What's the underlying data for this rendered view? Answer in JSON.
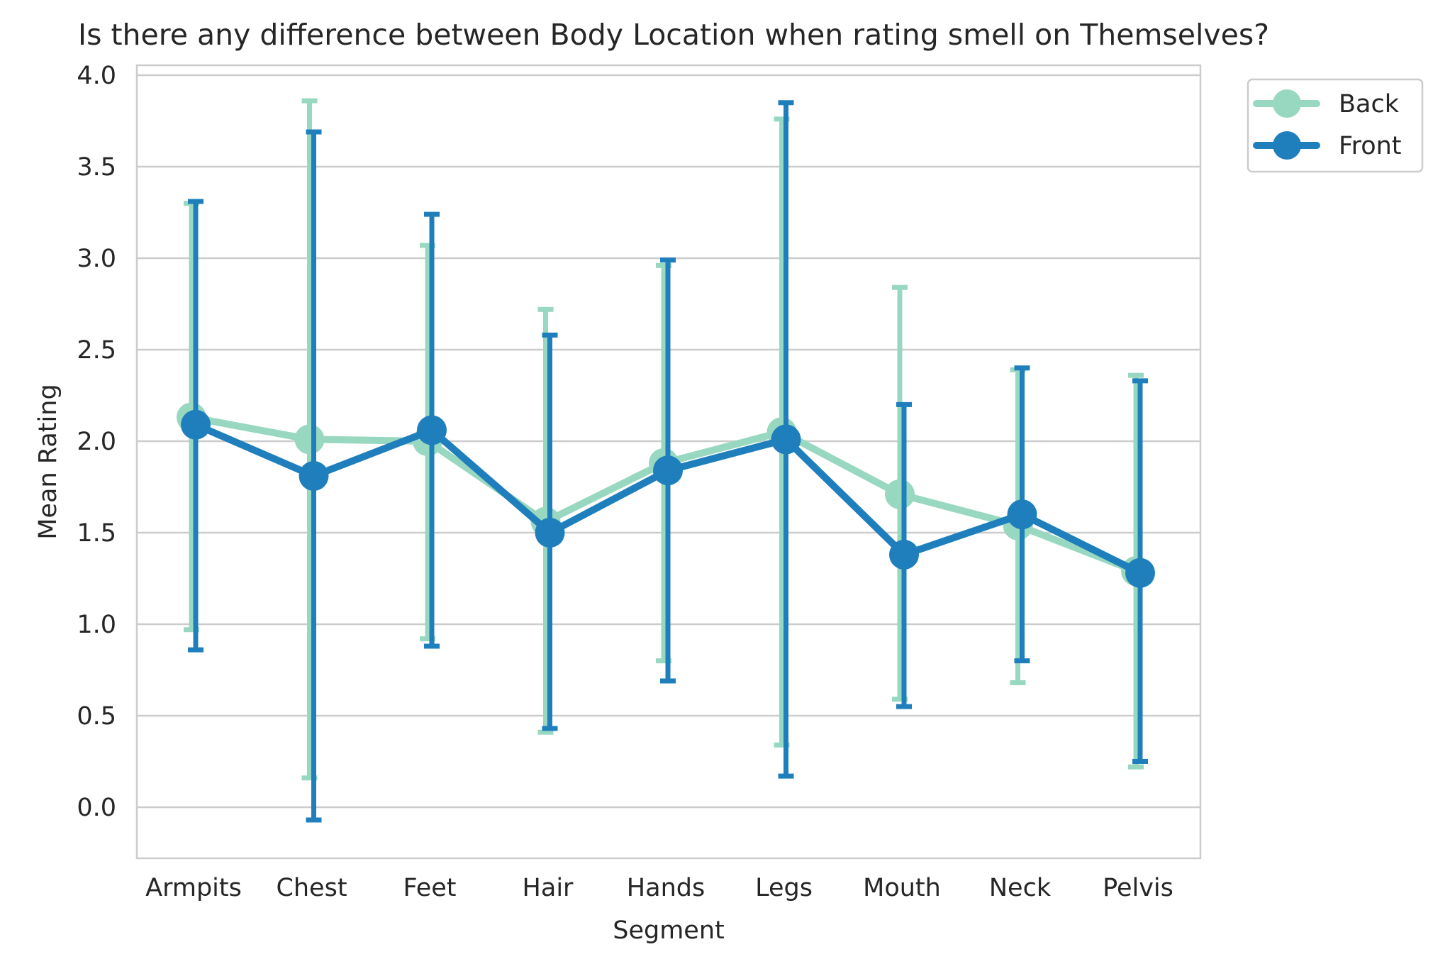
{
  "chart_data": {
    "type": "line",
    "title": "Is there any difference between Body Location when rating smell on Themselves?",
    "xlabel": "Segment",
    "ylabel": "Mean Rating",
    "categories": [
      "Armpits",
      "Chest",
      "Feet",
      "Hair",
      "Hands",
      "Legs",
      "Mouth",
      "Neck",
      "Pelvis"
    ],
    "ylim": [
      -0.27,
      4.05
    ],
    "yticks": [
      0.0,
      0.5,
      1.0,
      1.5,
      2.0,
      2.5,
      3.0,
      3.5,
      4.0
    ],
    "ytick_labels": [
      "0.0",
      "0.5",
      "1.0",
      "1.5",
      "2.0",
      "2.5",
      "3.0",
      "3.5",
      "4.0"
    ],
    "grid": true,
    "legend_position": "outside-top-right",
    "series": [
      {
        "name": "Back",
        "color": "#99d8c0",
        "values": [
          2.13,
          2.01,
          2.0,
          1.56,
          1.88,
          2.05,
          1.71,
          1.54,
          1.29
        ],
        "err_low": [
          0.97,
          0.16,
          0.92,
          0.41,
          0.8,
          0.34,
          0.59,
          0.68,
          0.22
        ],
        "err_high": [
          3.3,
          3.86,
          3.07,
          2.72,
          2.96,
          3.76,
          2.84,
          2.39,
          2.36
        ]
      },
      {
        "name": "Front",
        "color": "#1f7fbc",
        "values": [
          2.09,
          1.81,
          2.06,
          1.5,
          1.84,
          2.01,
          1.38,
          1.6,
          1.28
        ],
        "err_low": [
          0.86,
          -0.07,
          0.88,
          0.43,
          0.69,
          0.17,
          0.55,
          0.8,
          0.25
        ],
        "err_high": [
          3.31,
          3.69,
          3.24,
          2.58,
          2.99,
          3.85,
          2.2,
          2.4,
          2.33
        ]
      }
    ]
  }
}
